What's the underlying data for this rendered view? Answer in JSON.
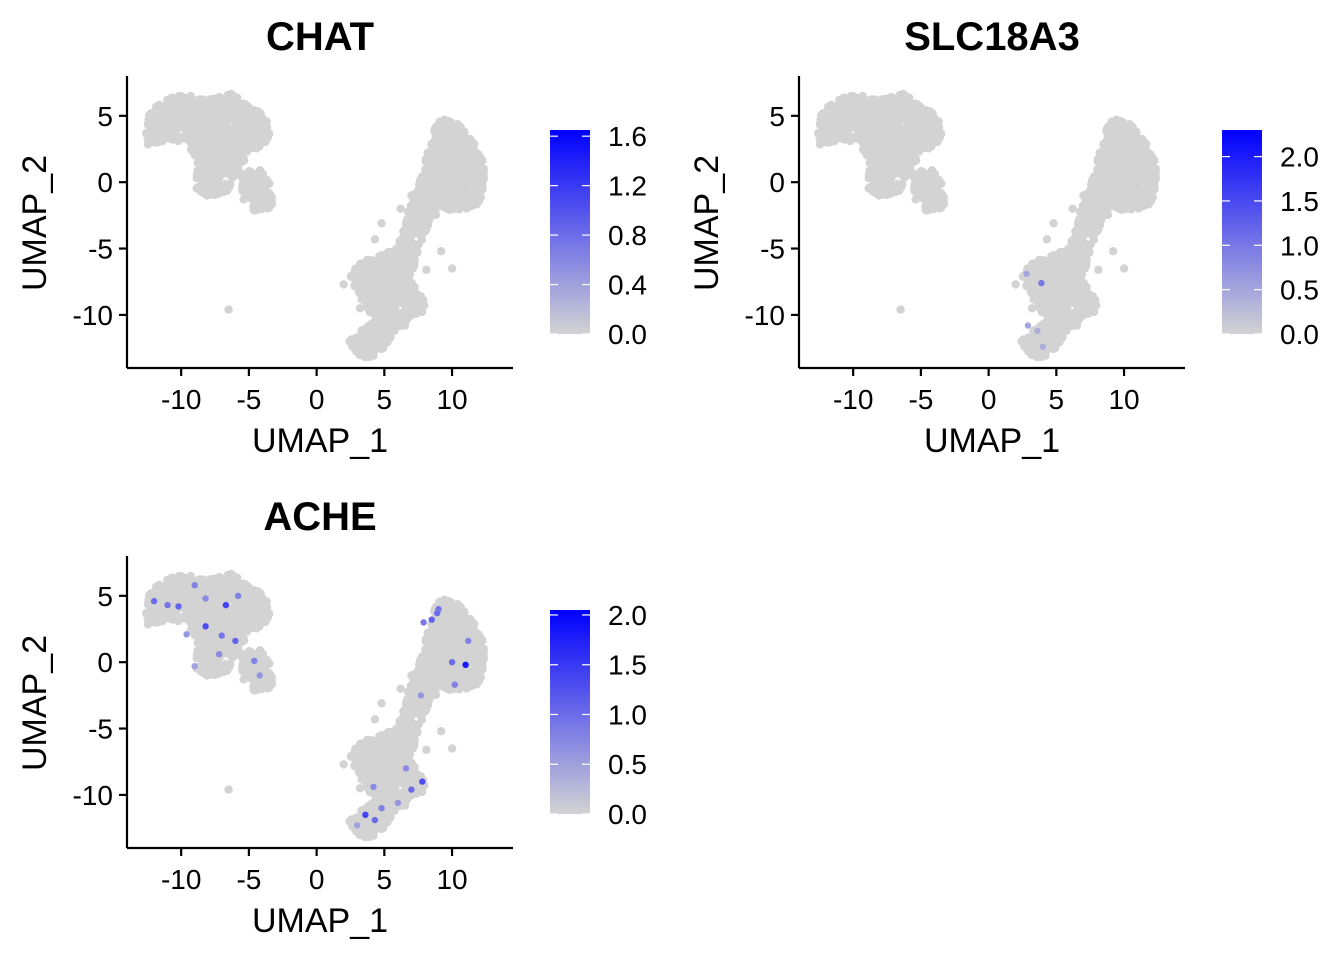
{
  "figure": {
    "colors": {
      "low": "#d3d3d3",
      "high": "#0000ff",
      "cell": "#d3d3d3"
    }
  },
  "chart_data": [
    {
      "type": "scatter",
      "title": "CHAT",
      "xlabel": "UMAP_1",
      "ylabel": "UMAP_2",
      "xlim": [
        -14,
        14.5
      ],
      "ylim": [
        -14,
        8
      ],
      "xticks": [
        -10,
        -5,
        0,
        5,
        10
      ],
      "yticks": [
        -10,
        -5,
        0,
        5
      ],
      "xtick_labels": [
        "-10",
        "-5",
        "0",
        "5",
        "10"
      ],
      "ytick_labels": [
        "-10",
        "-5",
        "0",
        "5"
      ],
      "legend": {
        "position": "right",
        "min": 0,
        "max": 1.65,
        "ticks": [
          0,
          0.4,
          0.8,
          1.2,
          1.6
        ],
        "labels": [
          "0.0",
          "0.4",
          "0.8",
          "1.2",
          "1.6"
        ]
      },
      "grid": false,
      "expressing_cells": []
    },
    {
      "type": "scatter",
      "title": "SLC18A3",
      "xlabel": "UMAP_1",
      "ylabel": "UMAP_2",
      "xlim": [
        -14,
        14.5
      ],
      "ylim": [
        -14,
        8
      ],
      "xticks": [
        -10,
        -5,
        0,
        5,
        10
      ],
      "yticks": [
        -10,
        -5,
        0,
        5
      ],
      "xtick_labels": [
        "-10",
        "-5",
        "0",
        "5",
        "10"
      ],
      "ytick_labels": [
        "-10",
        "-5",
        "0",
        "5"
      ],
      "legend": {
        "position": "right",
        "min": 0,
        "max": 2.3,
        "ticks": [
          0,
          0.5,
          1.0,
          1.5,
          2.0
        ],
        "labels": [
          "0.0",
          "0.5",
          "1.0",
          "1.5",
          "2.0"
        ]
      },
      "grid": false,
      "expressing_cells": [
        {
          "x": 3.9,
          "y": -7.6,
          "v": 1.0
        },
        {
          "x": 2.8,
          "y": -6.9,
          "v": 0.5
        },
        {
          "x": 2.9,
          "y": -10.8,
          "v": 0.5
        },
        {
          "x": 3.6,
          "y": -11.2,
          "v": 0.4
        },
        {
          "x": 4.0,
          "y": -12.4,
          "v": 0.4
        }
      ]
    },
    {
      "type": "scatter",
      "title": "ACHE",
      "xlabel": "UMAP_1",
      "ylabel": "UMAP_2",
      "xlim": [
        -14,
        14.5
      ],
      "ylim": [
        -14,
        8
      ],
      "xticks": [
        -10,
        -5,
        0,
        5,
        10
      ],
      "yticks": [
        -10,
        -5,
        0,
        5
      ],
      "xtick_labels": [
        "-10",
        "-5",
        "0",
        "5",
        "10"
      ],
      "ytick_labels": [
        "-10",
        "-5",
        "0",
        "5"
      ],
      "legend": {
        "position": "right",
        "min": 0,
        "max": 2.05,
        "ticks": [
          0,
          0.5,
          1.0,
          1.5,
          2.0
        ],
        "labels": [
          "0.0",
          "0.5",
          "1.0",
          "1.5",
          "2.0"
        ]
      },
      "grid": false,
      "expressing_cells": [
        {
          "x": -12.0,
          "y": 4.6,
          "v": 1.0
        },
        {
          "x": -11.0,
          "y": 4.3,
          "v": 0.9
        },
        {
          "x": -10.2,
          "y": 4.2,
          "v": 1.1
        },
        {
          "x": -9.0,
          "y": 5.8,
          "v": 0.8
        },
        {
          "x": -8.2,
          "y": 4.8,
          "v": 0.7
        },
        {
          "x": -6.7,
          "y": 4.3,
          "v": 1.4
        },
        {
          "x": -5.8,
          "y": 5.0,
          "v": 0.8
        },
        {
          "x": -8.2,
          "y": 2.7,
          "v": 1.3
        },
        {
          "x": -9.6,
          "y": 2.1,
          "v": 0.6
        },
        {
          "x": -7.0,
          "y": 2.0,
          "v": 0.9
        },
        {
          "x": -6.0,
          "y": 1.6,
          "v": 1.1
        },
        {
          "x": -7.2,
          "y": 0.6,
          "v": 0.7
        },
        {
          "x": -4.6,
          "y": 0.1,
          "v": 0.8
        },
        {
          "x": -4.2,
          "y": -1.0,
          "v": 0.6
        },
        {
          "x": -9.0,
          "y": -0.3,
          "v": 0.5
        },
        {
          "x": 8.5,
          "y": 3.2,
          "v": 1.1
        },
        {
          "x": 8.9,
          "y": 3.7,
          "v": 1.0
        },
        {
          "x": 9.0,
          "y": 4.0,
          "v": 0.9
        },
        {
          "x": 7.9,
          "y": 3.0,
          "v": 0.9
        },
        {
          "x": 11.2,
          "y": 1.6,
          "v": 0.8
        },
        {
          "x": 10.0,
          "y": 0.0,
          "v": 1.0
        },
        {
          "x": 11.0,
          "y": -0.2,
          "v": 1.8
        },
        {
          "x": 10.2,
          "y": -1.7,
          "v": 0.8
        },
        {
          "x": 7.7,
          "y": -2.5,
          "v": 0.6
        },
        {
          "x": 6.6,
          "y": -8.0,
          "v": 0.7
        },
        {
          "x": 7.8,
          "y": -9.0,
          "v": 1.3
        },
        {
          "x": 7.0,
          "y": -9.6,
          "v": 1.0
        },
        {
          "x": 6.0,
          "y": -10.6,
          "v": 0.6
        },
        {
          "x": 4.2,
          "y": -9.4,
          "v": 0.7
        },
        {
          "x": 4.8,
          "y": -11.0,
          "v": 0.8
        },
        {
          "x": 3.6,
          "y": -11.5,
          "v": 1.4
        },
        {
          "x": 4.3,
          "y": -11.9,
          "v": 1.0
        },
        {
          "x": 3.0,
          "y": -12.3,
          "v": 0.5
        }
      ]
    }
  ]
}
